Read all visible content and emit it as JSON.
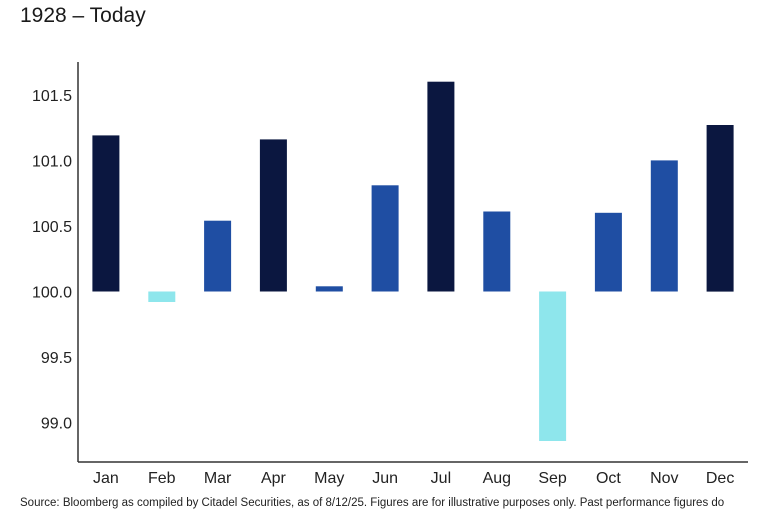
{
  "subtitle": "1928 – Today",
  "source_note": "Source: Bloomberg as compiled by Citadel Securities, as of 8/12/25. Figures are for illustrative purposes only. Past performance figures do",
  "chart_data": {
    "type": "bar",
    "categories": [
      "Jan",
      "Feb",
      "Mar",
      "Apr",
      "May",
      "Jun",
      "Jul",
      "Aug",
      "Sep",
      "Oct",
      "Nov",
      "Dec"
    ],
    "values": [
      101.19,
      99.92,
      100.54,
      101.16,
      100.04,
      100.81,
      101.6,
      100.61,
      98.86,
      100.6,
      101.0,
      101.27
    ],
    "baseline": 100.0,
    "ylim": [
      98.7,
      101.75
    ],
    "yticks": [
      "99.0",
      "99.5",
      "100.0",
      "100.5",
      "101.0",
      "101.5"
    ],
    "bar_colors": [
      "#0b1740",
      "#8ee6ec",
      "#1f4ea3",
      "#0b1740",
      "#1f4ea3",
      "#1f4ea3",
      "#0b1740",
      "#1f4ea3",
      "#8ee6ec",
      "#1f4ea3",
      "#1f4ea3",
      "#0b1740"
    ],
    "title": "",
    "xlabel": "",
    "ylabel": "",
    "grid": false,
    "legend": "none"
  }
}
